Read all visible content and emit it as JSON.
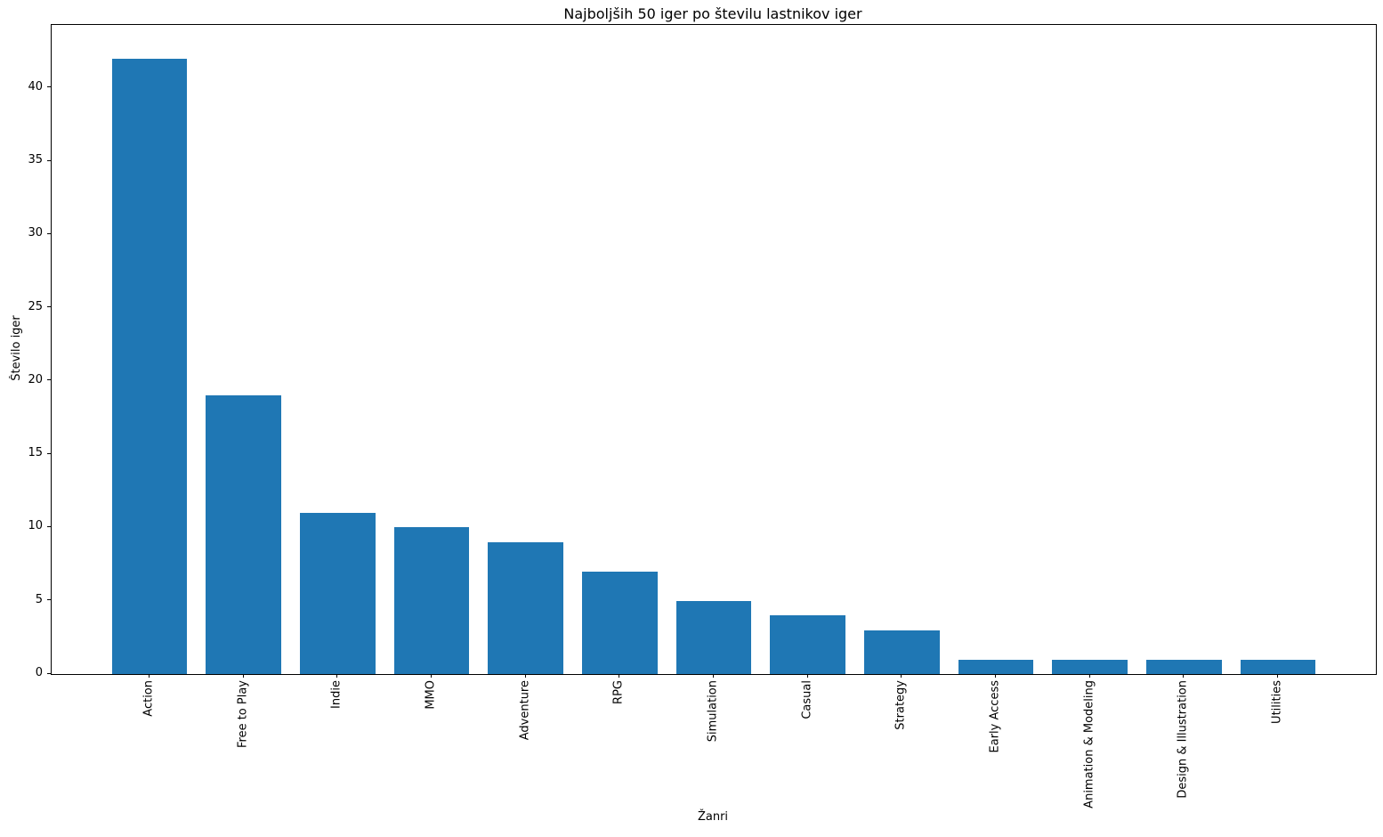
{
  "chart_data": {
    "type": "bar",
    "title": "Najboljših 50 iger po številu lastnikov iger",
    "xlabel": "Žanri",
    "ylabel": "Število iger",
    "categories": [
      "Action",
      "Free to Play",
      "Indie",
      "MMO",
      "Adventure",
      "RPG",
      "Simulation",
      "Casual",
      "Strategy",
      "Early Access",
      "Animation & Modeling",
      "Design & Illustration",
      "Utilities"
    ],
    "values": [
      42,
      19,
      11,
      10,
      9,
      7,
      5,
      4,
      3,
      1,
      1,
      1,
      1
    ],
    "yticks": [
      0,
      5,
      10,
      15,
      20,
      25,
      30,
      35,
      40
    ],
    "ylim": [
      0,
      44.3
    ],
    "xlim": [
      -1.04,
      13.04
    ],
    "bar_width": 0.8,
    "bar_color": "#1f77b4",
    "grid": false,
    "legend": null,
    "x_tick_label_rotation": 90
  }
}
